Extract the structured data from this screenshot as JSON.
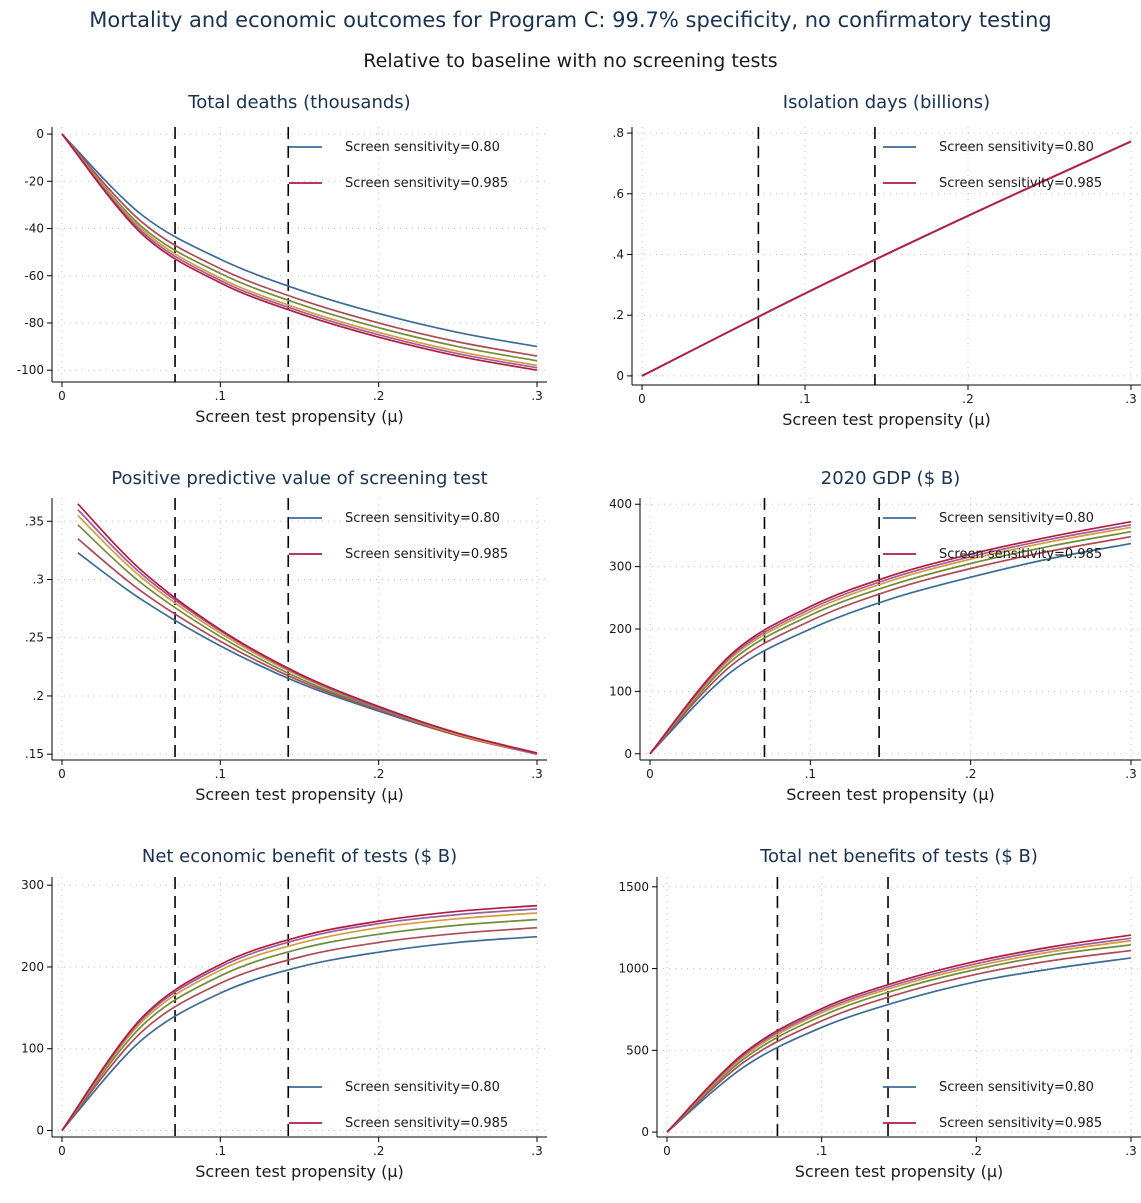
{
  "title": "Mortality and economic outcomes for Program C: 99.7% specificity, no confirmatory testing",
  "subtitle": "Relative to baseline with no screening tests",
  "colors": [
    "#3d6a96",
    "#b04a55",
    "#6f8c3f",
    "#d89a3a",
    "#9a5ea1",
    "#b51a3d"
  ],
  "chart_data": [
    {
      "type": "line",
      "title": "Total deaths (thousands)",
      "xlabel": "Screen test propensity (μ)",
      "xlim": [
        0,
        0.3
      ],
      "ylim": [
        -105,
        3
      ],
      "xticks": [
        0,
        0.1,
        0.2,
        0.3
      ],
      "xtick_labels": [
        "0",
        ".1",
        ".2",
        ".3"
      ],
      "yticks": [
        0,
        -20,
        -40,
        -60,
        -80,
        -100
      ],
      "ytick_labels": [
        "0",
        "-20",
        "-40",
        "-60",
        "-80",
        "-100"
      ],
      "vlines": [
        0.0714,
        0.1429
      ],
      "legend_position": "top-right",
      "legend": [
        "Screen sensitivity=0.80",
        "Screen sensitivity=0.985"
      ],
      "grid": true,
      "series": [
        {
          "x": [
            0,
            0.05,
            0.1,
            0.15,
            0.2,
            0.25,
            0.3
          ],
          "values": [
            0,
            -34,
            -53,
            -66,
            -76,
            -84,
            -90
          ]
        },
        {
          "x": [
            0,
            0.05,
            0.1,
            0.15,
            0.2,
            0.25,
            0.3
          ],
          "values": [
            0,
            -37,
            -57,
            -70,
            -80,
            -88,
            -94
          ]
        },
        {
          "x": [
            0,
            0.05,
            0.1,
            0.15,
            0.2,
            0.25,
            0.3
          ],
          "values": [
            0,
            -39,
            -59,
            -72,
            -82,
            -90,
            -96
          ]
        },
        {
          "x": [
            0,
            0.05,
            0.1,
            0.15,
            0.2,
            0.25,
            0.3
          ],
          "values": [
            0,
            -40,
            -61,
            -74,
            -84,
            -92,
            -98
          ]
        },
        {
          "x": [
            0,
            0.05,
            0.1,
            0.15,
            0.2,
            0.25,
            0.3
          ],
          "values": [
            0,
            -41,
            -62,
            -75,
            -85,
            -93,
            -99
          ]
        },
        {
          "x": [
            0,
            0.05,
            0.1,
            0.15,
            0.2,
            0.25,
            0.3
          ],
          "values": [
            0,
            -42,
            -63,
            -76,
            -86,
            -94,
            -100
          ]
        }
      ]
    },
    {
      "type": "line",
      "title": "Isolation days (billions)",
      "xlabel": "Screen test propensity (μ)",
      "xlim": [
        0,
        0.3
      ],
      "ylim": [
        -0.03,
        0.82
      ],
      "xticks": [
        0,
        0.1,
        0.2,
        0.3
      ],
      "xtick_labels": [
        "0",
        ".1",
        ".2",
        ".3"
      ],
      "yticks": [
        0,
        0.2,
        0.4,
        0.6,
        0.8
      ],
      "ytick_labels": [
        "0",
        ".2",
        ".4",
        ".6",
        ".8"
      ],
      "vlines": [
        0.0714,
        0.1429
      ],
      "legend_position": "top-right",
      "legend": [
        "Screen sensitivity=0.80",
        "Screen sensitivity=0.985"
      ],
      "grid": true,
      "series": [
        {
          "x": [
            0,
            0.1,
            0.2,
            0.3
          ],
          "values": [
            0,
            0.271,
            0.527,
            0.772
          ]
        },
        {
          "x": [
            0,
            0.1,
            0.2,
            0.3
          ],
          "values": [
            0,
            0.271,
            0.527,
            0.772
          ]
        },
        {
          "x": [
            0,
            0.1,
            0.2,
            0.3
          ],
          "values": [
            0,
            0.271,
            0.527,
            0.772
          ]
        },
        {
          "x": [
            0,
            0.1,
            0.2,
            0.3
          ],
          "values": [
            0,
            0.271,
            0.527,
            0.772
          ]
        },
        {
          "x": [
            0,
            0.1,
            0.2,
            0.3
          ],
          "values": [
            0,
            0.271,
            0.527,
            0.772
          ]
        },
        {
          "x": [
            0,
            0.1,
            0.2,
            0.3
          ],
          "values": [
            0,
            0.272,
            0.528,
            0.773
          ]
        }
      ]
    },
    {
      "type": "line",
      "title": "Positive predictive value of screening test",
      "xlabel": "Screen test propensity (μ)",
      "xlim": [
        0,
        0.3
      ],
      "ylim": [
        0.145,
        0.37
      ],
      "xticks": [
        0,
        0.1,
        0.2,
        0.3
      ],
      "xtick_labels": [
        "0",
        ".1",
        ".2",
        ".3"
      ],
      "yticks": [
        0.15,
        0.2,
        0.25,
        0.3,
        0.35
      ],
      "ytick_labels": [
        ".15",
        ".2",
        ".25",
        ".3",
        ".35"
      ],
      "vlines": [
        0.0714,
        0.1429
      ],
      "legend_position": "top-right",
      "legend": [
        "Screen sensitivity=0.80",
        "Screen sensitivity=0.985"
      ],
      "grid": true,
      "series": [
        {
          "x": [
            0.01,
            0.05,
            0.1,
            0.15,
            0.2,
            0.25,
            0.3
          ],
          "values": [
            0.323,
            0.283,
            0.243,
            0.211,
            0.187,
            0.166,
            0.15
          ]
        },
        {
          "x": [
            0.01,
            0.05,
            0.1,
            0.15,
            0.2,
            0.25,
            0.3
          ],
          "values": [
            0.335,
            0.29,
            0.247,
            0.213,
            0.188,
            0.166,
            0.15
          ]
        },
        {
          "x": [
            0.01,
            0.05,
            0.1,
            0.15,
            0.2,
            0.25,
            0.3
          ],
          "values": [
            0.347,
            0.297,
            0.251,
            0.215,
            0.189,
            0.167,
            0.15
          ]
        },
        {
          "x": [
            0.01,
            0.05,
            0.1,
            0.15,
            0.2,
            0.25,
            0.3
          ],
          "values": [
            0.355,
            0.302,
            0.254,
            0.217,
            0.19,
            0.167,
            0.15
          ]
        },
        {
          "x": [
            0.01,
            0.05,
            0.1,
            0.15,
            0.2,
            0.25,
            0.3
          ],
          "values": [
            0.36,
            0.305,
            0.256,
            0.218,
            0.19,
            0.168,
            0.15
          ]
        },
        {
          "x": [
            0.01,
            0.05,
            0.1,
            0.15,
            0.2,
            0.25,
            0.3
          ],
          "values": [
            0.365,
            0.308,
            0.257,
            0.219,
            0.191,
            0.168,
            0.151
          ]
        }
      ]
    },
    {
      "type": "line",
      "title": "2020 GDP ($ B)",
      "xlabel": "Screen test propensity (μ)",
      "xlim": [
        0,
        0.3
      ],
      "ylim": [
        -10,
        410
      ],
      "xticks": [
        0,
        0.1,
        0.2,
        0.3
      ],
      "xtick_labels": [
        "0",
        ".1",
        ".2",
        ".3"
      ],
      "yticks": [
        0,
        100,
        200,
        300,
        400
      ],
      "ytick_labels": [
        "0",
        "100",
        "200",
        "300",
        "400"
      ],
      "vlines": [
        0.0714,
        0.1429
      ],
      "legend_position": "top-right",
      "legend": [
        "Screen sensitivity=0.80",
        "Screen sensitivity=0.985"
      ],
      "grid": true,
      "series": [
        {
          "x": [
            0,
            0.05,
            0.1,
            0.15,
            0.2,
            0.25,
            0.3
          ],
          "values": [
            0,
            130,
            200,
            248,
            283,
            313,
            337
          ]
        },
        {
          "x": [
            0,
            0.05,
            0.1,
            0.15,
            0.2,
            0.25,
            0.3
          ],
          "values": [
            0,
            140,
            213,
            262,
            297,
            325,
            348
          ]
        },
        {
          "x": [
            0,
            0.05,
            0.1,
            0.15,
            0.2,
            0.25,
            0.3
          ],
          "values": [
            0,
            147,
            222,
            270,
            305,
            333,
            356
          ]
        },
        {
          "x": [
            0,
            0.05,
            0.1,
            0.15,
            0.2,
            0.25,
            0.3
          ],
          "values": [
            0,
            152,
            228,
            277,
            312,
            340,
            363
          ]
        },
        {
          "x": [
            0,
            0.05,
            0.1,
            0.15,
            0.2,
            0.25,
            0.3
          ],
          "values": [
            0,
            155,
            232,
            281,
            316,
            344,
            367
          ]
        },
        {
          "x": [
            0,
            0.05,
            0.1,
            0.15,
            0.2,
            0.25,
            0.3
          ],
          "values": [
            0,
            158,
            236,
            285,
            320,
            348,
            372
          ]
        }
      ]
    },
    {
      "type": "line",
      "title": "Net economic benefit of tests ($ B)",
      "xlabel": "Screen test propensity (μ)",
      "xlim": [
        0,
        0.3
      ],
      "ylim": [
        -8,
        310
      ],
      "xticks": [
        0,
        0.1,
        0.2,
        0.3
      ],
      "xtick_labels": [
        "0",
        ".1",
        ".2",
        ".3"
      ],
      "yticks": [
        0,
        100,
        200,
        300
      ],
      "ytick_labels": [
        "0",
        "100",
        "200",
        "300"
      ],
      "vlines": [
        0.0714,
        0.1429
      ],
      "legend_position": "bottom-right",
      "legend": [
        "Screen sensitivity=0.80",
        "Screen sensitivity=0.985"
      ],
      "grid": true,
      "series": [
        {
          "x": [
            0,
            0.05,
            0.1,
            0.15,
            0.2,
            0.25,
            0.3
          ],
          "values": [
            0,
            110,
            168,
            200,
            218,
            230,
            237
          ]
        },
        {
          "x": [
            0,
            0.05,
            0.1,
            0.15,
            0.2,
            0.25,
            0.3
          ],
          "values": [
            0,
            120,
            180,
            212,
            230,
            241,
            248
          ]
        },
        {
          "x": [
            0,
            0.05,
            0.1,
            0.15,
            0.2,
            0.25,
            0.3
          ],
          "values": [
            0,
            127,
            189,
            222,
            240,
            251,
            258
          ]
        },
        {
          "x": [
            0,
            0.05,
            0.1,
            0.15,
            0.2,
            0.25,
            0.3
          ],
          "values": [
            0,
            132,
            196,
            229,
            248,
            259,
            266
          ]
        },
        {
          "x": [
            0,
            0.05,
            0.1,
            0.15,
            0.2,
            0.25,
            0.3
          ],
          "values": [
            0,
            135,
            200,
            234,
            253,
            264,
            271
          ]
        },
        {
          "x": [
            0,
            0.05,
            0.1,
            0.15,
            0.2,
            0.25,
            0.3
          ],
          "values": [
            0,
            137,
            203,
            237,
            256,
            268,
            275
          ]
        }
      ]
    },
    {
      "type": "line",
      "title": "Total net benefits of tests ($ B)",
      "xlabel": "Screen test propensity (μ)",
      "xlim": [
        0,
        0.3
      ],
      "ylim": [
        -30,
        1560
      ],
      "xticks": [
        0,
        0.1,
        0.2,
        0.3
      ],
      "xtick_labels": [
        "0",
        ".1",
        ".2",
        ".3"
      ],
      "yticks": [
        0,
        500,
        1000,
        1500
      ],
      "ytick_labels": [
        "0",
        "500",
        "1000",
        "1500"
      ],
      "vlines": [
        0.0714,
        0.1429
      ],
      "legend_position": "bottom-right",
      "legend": [
        "Screen sensitivity=0.80",
        "Screen sensitivity=0.985"
      ],
      "grid": true,
      "series": [
        {
          "x": [
            0,
            0.05,
            0.1,
            0.15,
            0.2,
            0.25,
            0.3
          ],
          "values": [
            0,
            400,
            640,
            800,
            920,
            1000,
            1065
          ]
        },
        {
          "x": [
            0,
            0.05,
            0.1,
            0.15,
            0.2,
            0.25,
            0.3
          ],
          "values": [
            0,
            430,
            680,
            845,
            965,
            1050,
            1110
          ]
        },
        {
          "x": [
            0,
            0.05,
            0.1,
            0.15,
            0.2,
            0.25,
            0.3
          ],
          "values": [
            0,
            450,
            710,
            875,
            995,
            1085,
            1145
          ]
        },
        {
          "x": [
            0,
            0.05,
            0.1,
            0.15,
            0.2,
            0.25,
            0.3
          ],
          "values": [
            0,
            465,
            730,
            895,
            1015,
            1105,
            1170
          ]
        },
        {
          "x": [
            0,
            0.05,
            0.1,
            0.15,
            0.2,
            0.25,
            0.3
          ],
          "values": [
            0,
            475,
            742,
            908,
            1030,
            1120,
            1185
          ]
        },
        {
          "x": [
            0,
            0.05,
            0.1,
            0.15,
            0.2,
            0.25,
            0.3
          ],
          "values": [
            0,
            485,
            755,
            922,
            1045,
            1135,
            1205
          ]
        }
      ]
    }
  ]
}
